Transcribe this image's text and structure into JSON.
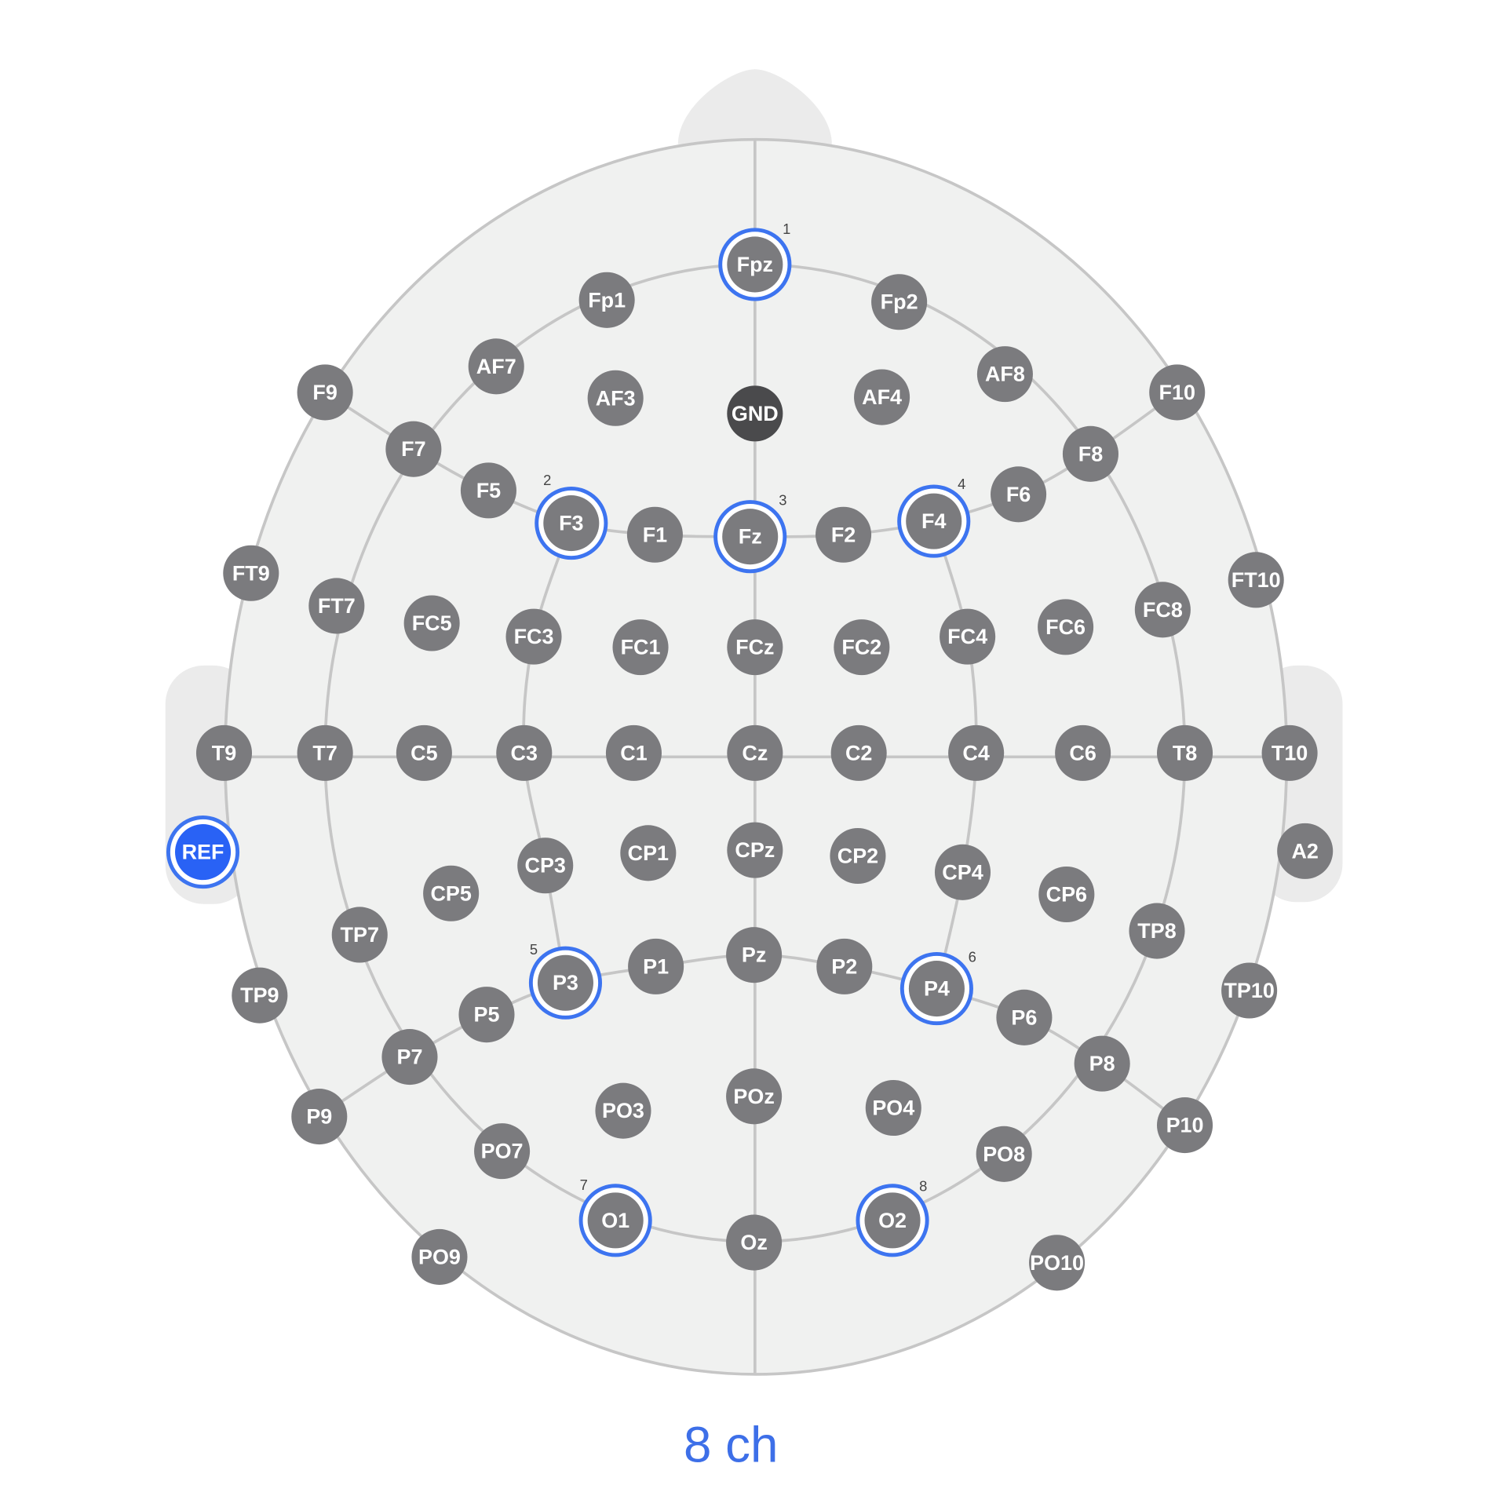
{
  "channel_count_label": "8 ch",
  "colors": {
    "electrode": "#7b7b7e",
    "ground": "#4a4a4c",
    "selected_ring": "#3d74f0",
    "reference": "#2962f5",
    "head_fill": "#f0f1f0",
    "head_outline": "#c6c6c6",
    "label_accent": "#3d6fe8"
  },
  "electrodes": [
    {
      "name": "Fpz",
      "channel": "1"
    },
    {
      "name": "Fp1"
    },
    {
      "name": "Fp2"
    },
    {
      "name": "AF7"
    },
    {
      "name": "AF3"
    },
    {
      "name": "GND",
      "type": "ground"
    },
    {
      "name": "AF4"
    },
    {
      "name": "AF8"
    },
    {
      "name": "F9"
    },
    {
      "name": "F10"
    },
    {
      "name": "F7"
    },
    {
      "name": "F8"
    },
    {
      "name": "F5"
    },
    {
      "name": "F3",
      "channel": "2"
    },
    {
      "name": "F1"
    },
    {
      "name": "Fz",
      "channel": "3"
    },
    {
      "name": "F2"
    },
    {
      "name": "F4",
      "channel": "4"
    },
    {
      "name": "F6"
    },
    {
      "name": "FT9"
    },
    {
      "name": "FT10"
    },
    {
      "name": "FT7"
    },
    {
      "name": "FC5"
    },
    {
      "name": "FC3"
    },
    {
      "name": "FC1"
    },
    {
      "name": "FCz"
    },
    {
      "name": "FC2"
    },
    {
      "name": "FC4"
    },
    {
      "name": "FC6"
    },
    {
      "name": "FC8"
    },
    {
      "name": "T9"
    },
    {
      "name": "T7"
    },
    {
      "name": "C5"
    },
    {
      "name": "C3"
    },
    {
      "name": "C1"
    },
    {
      "name": "Cz"
    },
    {
      "name": "C2"
    },
    {
      "name": "C4"
    },
    {
      "name": "C6"
    },
    {
      "name": "T8"
    },
    {
      "name": "T10"
    },
    {
      "name": "REF",
      "type": "reference"
    },
    {
      "name": "A2"
    },
    {
      "name": "CP3"
    },
    {
      "name": "CP1"
    },
    {
      "name": "CPz"
    },
    {
      "name": "CP2"
    },
    {
      "name": "CP4"
    },
    {
      "name": "CP5"
    },
    {
      "name": "CP6"
    },
    {
      "name": "TP7"
    },
    {
      "name": "TP8"
    },
    {
      "name": "TP9"
    },
    {
      "name": "TP10"
    },
    {
      "name": "P3",
      "channel": "5"
    },
    {
      "name": "P1"
    },
    {
      "name": "Pz"
    },
    {
      "name": "P2"
    },
    {
      "name": "P4",
      "channel": "6"
    },
    {
      "name": "P5"
    },
    {
      "name": "P6"
    },
    {
      "name": "P7"
    },
    {
      "name": "P8"
    },
    {
      "name": "P9"
    },
    {
      "name": "P10"
    },
    {
      "name": "PO3"
    },
    {
      "name": "POz"
    },
    {
      "name": "PO4"
    },
    {
      "name": "PO7"
    },
    {
      "name": "PO8"
    },
    {
      "name": "O1",
      "channel": "7"
    },
    {
      "name": "Oz"
    },
    {
      "name": "O2",
      "channel": "8"
    },
    {
      "name": "PO9"
    },
    {
      "name": "PO10"
    }
  ]
}
